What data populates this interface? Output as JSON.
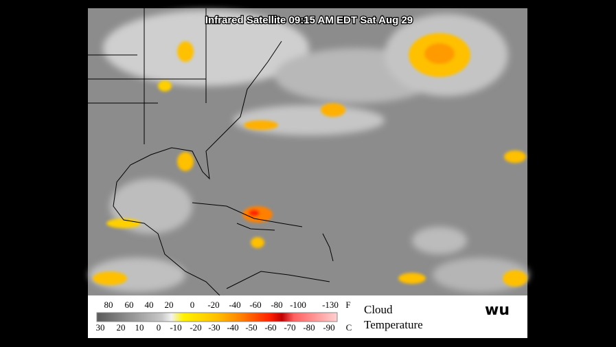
{
  "map": {
    "title": "Infrared Satellite 09:15 AM EDT Sat Aug 29"
  },
  "legend": {
    "fahrenheit": [
      80,
      60,
      40,
      20,
      0,
      -20,
      -40,
      -60,
      -80,
      -100,
      -130
    ],
    "fahrenheit_unit": "F",
    "celsius": [
      30,
      20,
      10,
      0,
      -10,
      -20,
      -30,
      -40,
      -50,
      -60,
      -70,
      -80,
      -90
    ],
    "celsius_unit": "C",
    "caption_line1": "Cloud",
    "caption_line2": "Temperature",
    "logo": "wu"
  }
}
